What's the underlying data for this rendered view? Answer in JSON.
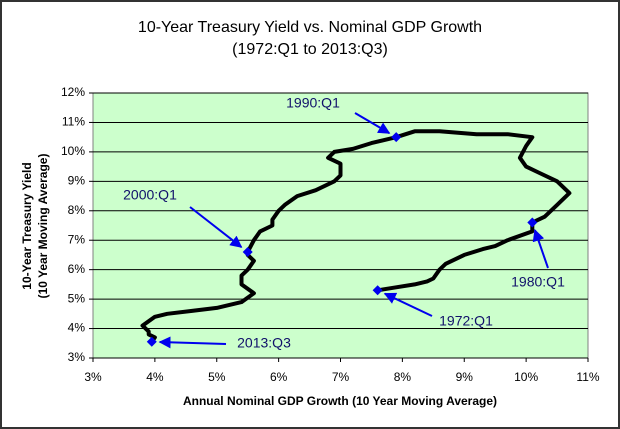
{
  "chart_data": {
    "type": "line",
    "title": "10-Year Treasury Yield vs. Nominal GDP Growth",
    "subtitle": "(1972:Q1 to 2013:Q3)",
    "x_label": "Annual Nominal GDP Growth (10 Year Moving Average)",
    "y_label": [
      "10-Year Treasury Yield",
      "(10 Year Moving Average)"
    ],
    "color": "#000000",
    "marker_color": "#0000ee",
    "plot_background": "#ccffcc",
    "grid": true,
    "xlim": [
      3,
      11
    ],
    "ylim": [
      3,
      12
    ],
    "xticks": [
      {
        "value": 3,
        "label": "3%"
      },
      {
        "value": 4,
        "label": "4%"
      },
      {
        "value": 5,
        "label": "5%"
      },
      {
        "value": 6,
        "label": "6%"
      },
      {
        "value": 7,
        "label": "7%"
      },
      {
        "value": 8,
        "label": "8%"
      },
      {
        "value": 9,
        "label": "9%"
      },
      {
        "value": 10,
        "label": "10%"
      },
      {
        "value": 11,
        "label": "11%"
      }
    ],
    "yticks": [
      {
        "value": 3,
        "label": "3%"
      },
      {
        "value": 4,
        "label": "4%"
      },
      {
        "value": 5,
        "label": "5%"
      },
      {
        "value": 6,
        "label": "6%"
      },
      {
        "value": 7,
        "label": "7%"
      },
      {
        "value": 8,
        "label": "8%"
      },
      {
        "value": 9,
        "label": "9%"
      },
      {
        "value": 10,
        "label": "10%"
      },
      {
        "value": 11,
        "label": "11%"
      },
      {
        "value": 12,
        "label": "12%"
      }
    ],
    "x": [
      7.6,
      7.9,
      8.2,
      8.4,
      8.5,
      8.6,
      8.7,
      9.0,
      9.3,
      9.5,
      9.7,
      10.1,
      10.1,
      10.3,
      10.5,
      10.7,
      10.5,
      10.2,
      10.0,
      9.9,
      10.0,
      10.1,
      9.7,
      9.2,
      8.6,
      8.2,
      7.9,
      7.5,
      7.2,
      6.9,
      6.8,
      7.0,
      7.0,
      6.9,
      6.6,
      6.3,
      6.1,
      6.0,
      5.9,
      5.9,
      5.7,
      5.6,
      5.5,
      5.5,
      5.6,
      5.5,
      5.4,
      5.4,
      5.6,
      5.4,
      5.0,
      4.6,
      4.2,
      4.0,
      3.8,
      3.9,
      3.9,
      4.0,
      3.95
    ],
    "values": [
      5.3,
      5.4,
      5.5,
      5.6,
      5.7,
      6.0,
      6.2,
      6.5,
      6.7,
      6.8,
      7.0,
      7.3,
      7.6,
      7.8,
      8.2,
      8.6,
      9.0,
      9.3,
      9.5,
      9.8,
      10.2,
      10.5,
      10.6,
      10.6,
      10.7,
      10.7,
      10.5,
      10.3,
      10.1,
      10.0,
      9.8,
      9.6,
      9.2,
      9.0,
      8.7,
      8.5,
      8.2,
      8.0,
      7.7,
      7.5,
      7.3,
      7.0,
      6.6,
      6.5,
      6.3,
      6.0,
      5.8,
      5.5,
      5.2,
      4.9,
      4.7,
      4.6,
      4.5,
      4.4,
      4.1,
      3.9,
      3.8,
      3.7,
      3.55
    ],
    "annotations": [
      {
        "text": "1990:Q1",
        "x": 7.9,
        "y": 10.5
      },
      {
        "text": "2000:Q1",
        "x": 5.5,
        "y": 6.6
      },
      {
        "text": "1980:Q1",
        "x": 10.1,
        "y": 7.6
      },
      {
        "text": "1972:Q1",
        "x": 7.6,
        "y": 5.3
      },
      {
        "text": "2013:Q3",
        "x": 3.95,
        "y": 3.55
      }
    ]
  }
}
